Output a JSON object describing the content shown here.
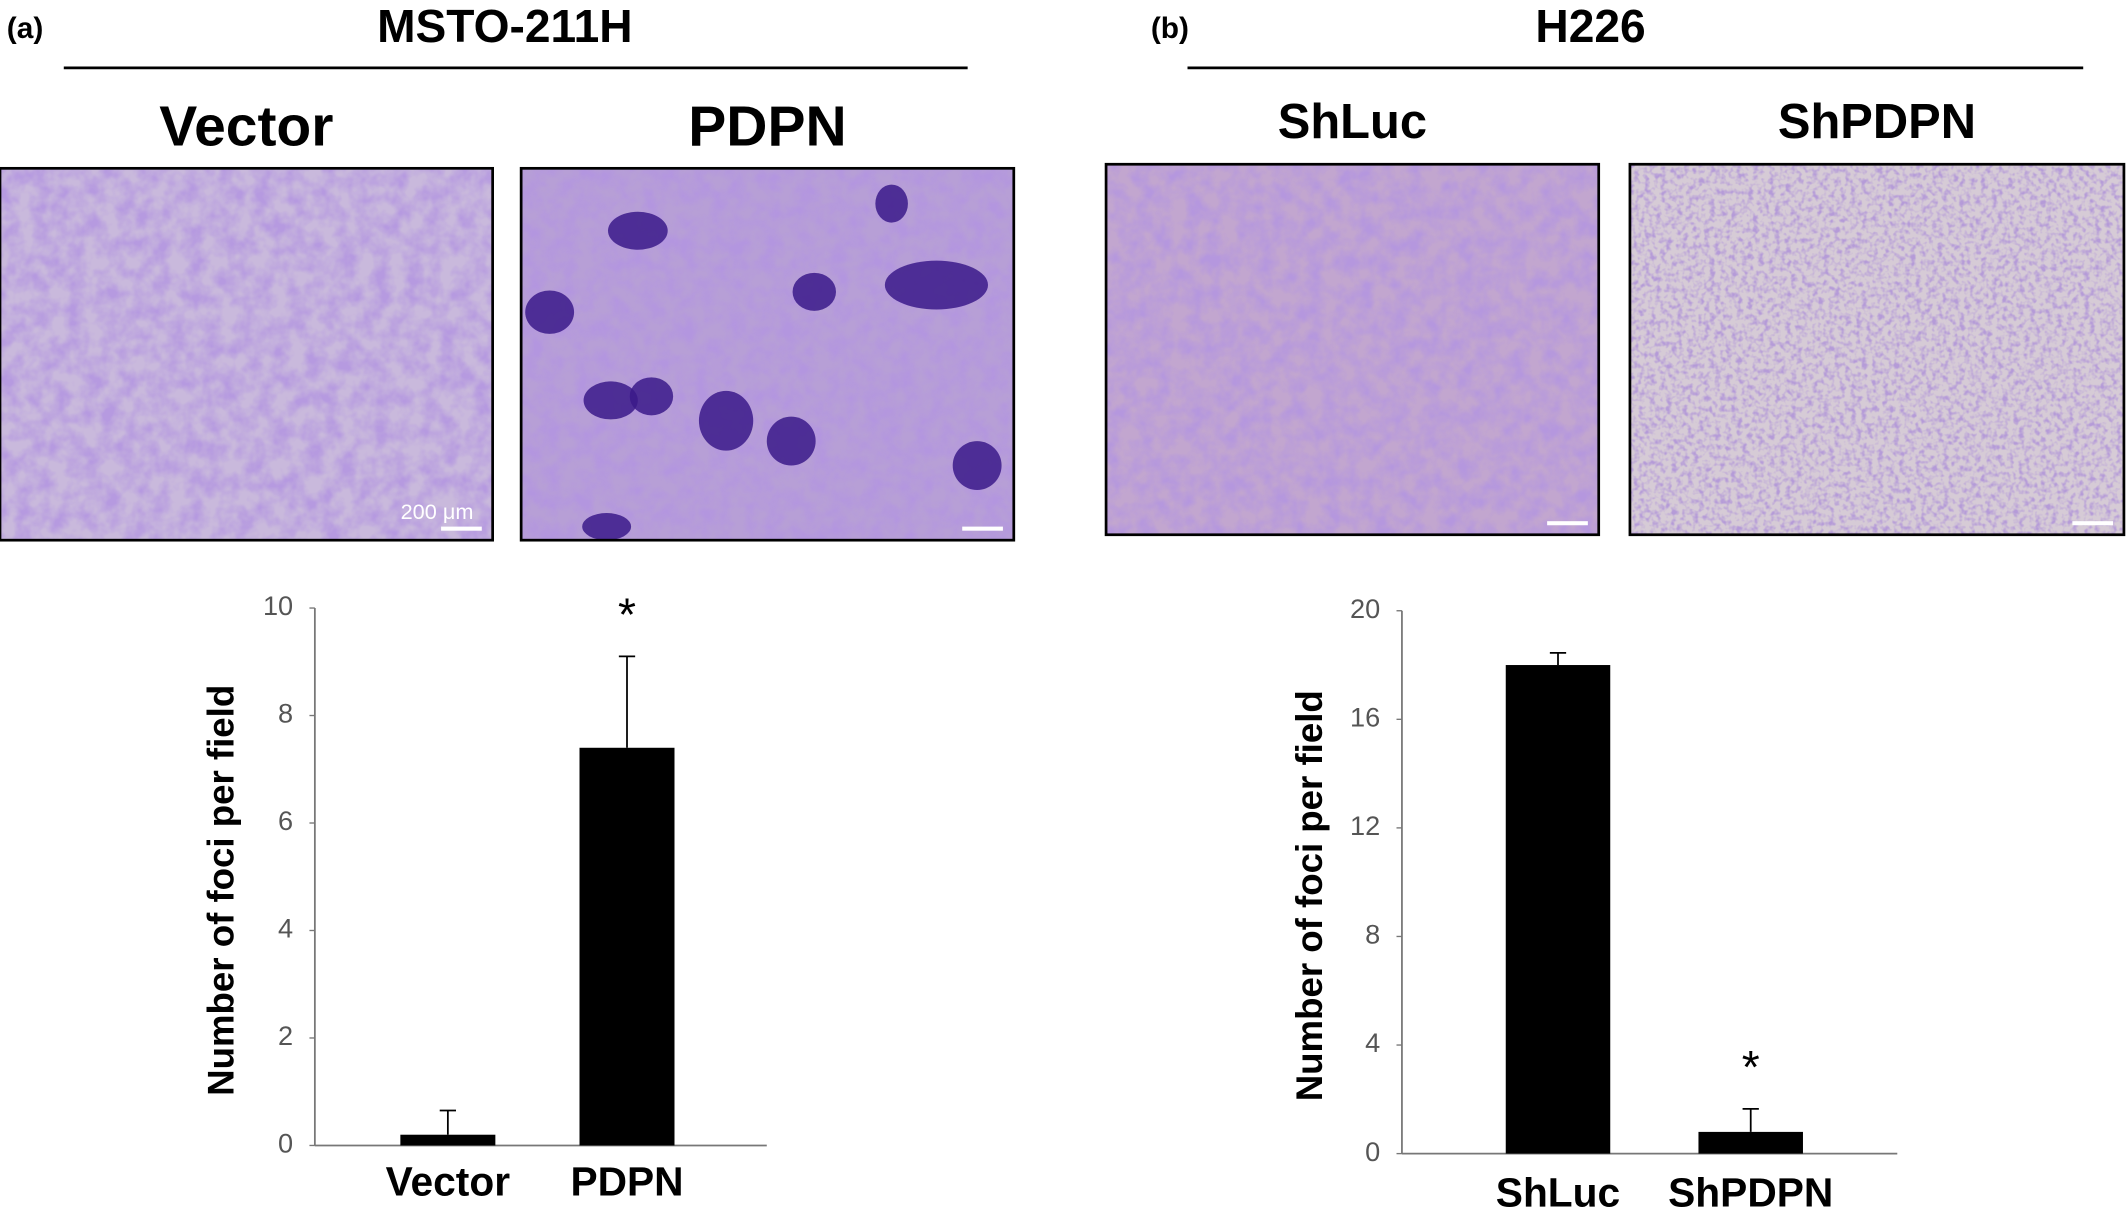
{
  "panels": [
    {
      "label": "(a)",
      "title": "MSTO-211H",
      "images": [
        "Vector",
        "PDPN"
      ],
      "scale_bar": "200 μm"
    },
    {
      "label": "(b)",
      "title": "H226",
      "images": [
        "ShLuc",
        "ShPDPN"
      ]
    }
  ],
  "chart_data": [
    {
      "type": "bar",
      "y_label": "Number of foci per field",
      "categories": [
        "Vector",
        "PDPN"
      ],
      "values": [
        0.2,
        7.4
      ],
      "errors": [
        0.45,
        1.7
      ],
      "significance": [
        null,
        "*"
      ],
      "color": "#000000",
      "ylim": [
        0,
        10
      ],
      "yticks": [
        0,
        2,
        4,
        6,
        8,
        10
      ]
    },
    {
      "type": "bar",
      "y_label": "Number of foci per field",
      "categories": [
        "ShLuc",
        "ShPDPN"
      ],
      "values": [
        18,
        0.8
      ],
      "errors": [
        0.45,
        0.85
      ],
      "significance": [
        null,
        "*"
      ],
      "color": "#000000",
      "ylim": [
        0,
        20
      ],
      "yticks": [
        0,
        4,
        8,
        12,
        16,
        20
      ]
    }
  ]
}
